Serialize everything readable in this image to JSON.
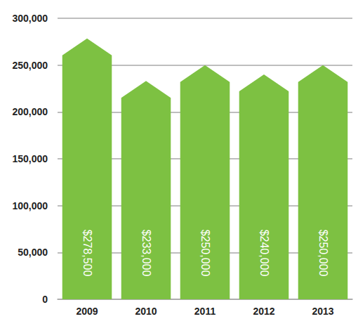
{
  "chart_data": {
    "type": "bar",
    "categories": [
      "2009",
      "2010",
      "2011",
      "2012",
      "2013"
    ],
    "values": [
      278500,
      233000,
      250000,
      240000,
      250000
    ],
    "value_labels": [
      "$278,500",
      "$233,000",
      "$250,000",
      "$240,000",
      "$250,000"
    ],
    "data_labels": true,
    "color": "#7dc142",
    "ylim": [
      0,
      300000
    ],
    "yticks": [
      0,
      {
        "value": 50000,
        "label": "50,000"
      },
      {
        "value": 100000,
        "label": "100,000"
      },
      {
        "value": 150000,
        "label": "150,000"
      },
      {
        "value": 200000,
        "label": "200,000"
      },
      {
        "value": 250000,
        "label": "250,000"
      },
      {
        "value": 300000,
        "label": "300,000"
      }
    ],
    "grid": true
  }
}
